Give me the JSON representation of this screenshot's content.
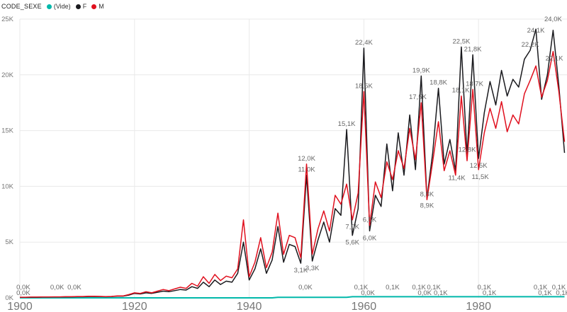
{
  "legend": {
    "title": "CODE_SEXE",
    "items": [
      {
        "label": "(Vide)"
      },
      {
        "label": "F"
      },
      {
        "label": "M"
      }
    ]
  },
  "chart_data": {
    "type": "line",
    "title": "",
    "xlabel": "",
    "ylabel": "",
    "legend_position": "top-left",
    "grid": true,
    "grid_color": "#e9e9e9",
    "axis_text_color": "#777777",
    "data_label_color": "#666666",
    "xlim": [
      1900,
      1995
    ],
    "ylim": [
      0,
      25000
    ],
    "x_ticks": [
      {
        "v": 1900,
        "label": "1900"
      },
      {
        "v": 1920,
        "label": "1920"
      },
      {
        "v": 1940,
        "label": "1940"
      },
      {
        "v": 1960,
        "label": "1960"
      },
      {
        "v": 1980,
        "label": "1980"
      }
    ],
    "y_ticks": [
      {
        "v": 0,
        "label": "0K"
      },
      {
        "v": 5,
        "label": "5K"
      },
      {
        "v": 10,
        "label": "10K"
      },
      {
        "v": 15,
        "label": "15K"
      },
      {
        "v": 20,
        "label": "20K"
      },
      {
        "v": 25,
        "label": "25K"
      }
    ],
    "years": [
      1900,
      1901,
      1902,
      1903,
      1904,
      1905,
      1906,
      1907,
      1908,
      1909,
      1910,
      1911,
      1912,
      1913,
      1914,
      1915,
      1916,
      1917,
      1918,
      1919,
      1920,
      1921,
      1922,
      1923,
      1924,
      1925,
      1926,
      1927,
      1928,
      1929,
      1930,
      1931,
      1932,
      1933,
      1934,
      1935,
      1936,
      1937,
      1938,
      1939,
      1940,
      1941,
      1942,
      1943,
      1944,
      1945,
      1946,
      1947,
      1948,
      1949,
      1950,
      1951,
      1952,
      1953,
      1954,
      1955,
      1956,
      1957,
      1958,
      1959,
      1960,
      1961,
      1962,
      1963,
      1964,
      1965,
      1966,
      1967,
      1968,
      1969,
      1970,
      1971,
      1972,
      1973,
      1974,
      1975,
      1976,
      1977,
      1978,
      1979,
      1980,
      1981,
      1982,
      1983,
      1984,
      1985,
      1986,
      1987,
      1988,
      1989,
      1990,
      1991,
      1992,
      1993,
      1994,
      1995
    ],
    "series": [
      {
        "key": "vide",
        "name": "(Vide)",
        "color": "#01b8aa",
        "width": 2,
        "values": [
          0,
          0,
          0,
          0,
          0,
          0,
          0,
          0,
          0,
          0,
          0,
          0,
          0,
          0,
          0,
          0,
          0,
          0,
          0,
          0,
          0,
          0,
          0,
          0,
          0,
          0,
          0,
          0,
          0,
          0,
          0,
          0,
          0,
          0,
          0,
          0,
          0,
          0,
          0,
          0,
          0,
          0,
          0,
          0,
          0,
          0.05,
          0.05,
          0.05,
          0.05,
          0.05,
          0.05,
          0.05,
          0.05,
          0.05,
          0.05,
          0.05,
          0.05,
          0.05,
          0.1,
          0.1,
          0.1,
          0.1,
          0.1,
          0.1,
          0.1,
          0.1,
          0.1,
          0.1,
          0.1,
          0.1,
          0.1,
          0.1,
          0.1,
          0.1,
          0.1,
          0.1,
          0.1,
          0.1,
          0.1,
          0.1,
          0.1,
          0.1,
          0.1,
          0.1,
          0.1,
          0.1,
          0.1,
          0.1,
          0.1,
          0.1,
          0.1,
          0.1,
          0.1,
          0.1,
          0.1,
          0.1
        ]
      },
      {
        "key": "f",
        "name": "F",
        "color": "#1a1a1e",
        "width": 1.5,
        "values": [
          0.05,
          0.05,
          0.06,
          0.06,
          0.07,
          0.07,
          0.08,
          0.08,
          0.09,
          0.09,
          0.1,
          0.1,
          0.12,
          0.12,
          0.12,
          0.1,
          0.12,
          0.15,
          0.15,
          0.25,
          0.4,
          0.35,
          0.45,
          0.4,
          0.5,
          0.6,
          0.55,
          0.65,
          0.75,
          0.7,
          1.0,
          0.85,
          1.4,
          1.0,
          1.6,
          1.2,
          1.5,
          1.4,
          2.2,
          5.0,
          1.6,
          2.6,
          4.4,
          2.2,
          3.4,
          6.4,
          3.2,
          4.8,
          4.6,
          3.1,
          11.0,
          3.3,
          5.2,
          6.8,
          5.0,
          8.0,
          7.4,
          15.1,
          5.6,
          8.0,
          22.4,
          6.0,
          9.2,
          8.2,
          13.8,
          9.6,
          14.8,
          11.0,
          16.4,
          11.5,
          19.9,
          8.9,
          13.0,
          18.8,
          12.0,
          14.2,
          11.4,
          22.5,
          12.8,
          21.8,
          12.5,
          16.6,
          19.4,
          17.3,
          20.4,
          18.1,
          19.6,
          18.9,
          21.4,
          22.2,
          24.1,
          17.8,
          20.0,
          24.0,
          19.0,
          13.0
        ]
      },
      {
        "key": "m",
        "name": "M",
        "color": "#e0101e",
        "width": 1.5,
        "values": [
          0.06,
          0.06,
          0.07,
          0.07,
          0.08,
          0.08,
          0.09,
          0.09,
          0.1,
          0.1,
          0.12,
          0.12,
          0.14,
          0.14,
          0.13,
          0.11,
          0.13,
          0.17,
          0.17,
          0.3,
          0.45,
          0.4,
          0.55,
          0.45,
          0.6,
          0.75,
          0.65,
          0.8,
          0.95,
          0.85,
          1.3,
          1.05,
          1.9,
          1.3,
          2.1,
          1.55,
          1.95,
          1.8,
          2.6,
          7.0,
          1.9,
          3.2,
          5.4,
          2.7,
          4.1,
          7.6,
          3.9,
          5.6,
          5.4,
          3.6,
          12.0,
          3.9,
          6.2,
          7.8,
          6.0,
          9.2,
          8.4,
          10.2,
          7.0,
          9.4,
          18.5,
          6.5,
          10.4,
          9.0,
          12.2,
          10.6,
          13.2,
          11.6,
          15.2,
          12.4,
          17.5,
          8.8,
          12.2,
          15.8,
          11.4,
          13.2,
          11.0,
          18.1,
          12.3,
          18.7,
          11.5,
          14.8,
          17.0,
          15.2,
          17.6,
          14.9,
          16.4,
          15.6,
          18.3,
          19.5,
          20.8,
          18.0,
          19.5,
          22.1,
          18.5,
          14.0
        ]
      }
    ],
    "point_labels": [
      {
        "t": "0,0K",
        "yr": 1900.6,
        "k": 0.45,
        "pos": "above"
      },
      {
        "t": "0,0K",
        "yr": 1900.6,
        "k": 0.08,
        "pos": "under"
      },
      {
        "t": "0,0K",
        "yr": 1906.5,
        "k": 0.45,
        "pos": "above"
      },
      {
        "t": "0,0K",
        "yr": 1909.5,
        "k": 0.45,
        "pos": "above"
      },
      {
        "t": "3,1K",
        "yr": 1949,
        "k": 3.1,
        "pos": "below"
      },
      {
        "t": "12,0K",
        "yr": 1950,
        "k": 12.0,
        "pos": "above"
      },
      {
        "t": "11,0K",
        "yr": 1950,
        "k": 11.0,
        "pos": "above"
      },
      {
        "t": "3,3K",
        "yr": 1951,
        "k": 3.3,
        "pos": "below"
      },
      {
        "t": "0,0K",
        "yr": 1949.8,
        "k": 0.45,
        "pos": "above"
      },
      {
        "t": "15,1K",
        "yr": 1957,
        "k": 15.1,
        "pos": "above"
      },
      {
        "t": "7,0K",
        "yr": 1958,
        "k": 7.0,
        "pos": "below"
      },
      {
        "t": "5,6K",
        "yr": 1958,
        "k": 5.6,
        "pos": "below"
      },
      {
        "t": "22,4K",
        "yr": 1960,
        "k": 22.4,
        "pos": "above"
      },
      {
        "t": "18,5K",
        "yr": 1960,
        "k": 18.5,
        "pos": "above"
      },
      {
        "t": "0,1K",
        "yr": 1959.5,
        "k": 0.45,
        "pos": "above"
      },
      {
        "t": "0,0K",
        "yr": 1960.7,
        "k": 0.08,
        "pos": "under"
      },
      {
        "t": "6,5K",
        "yr": 1961,
        "k": 6.5,
        "pos": "above"
      },
      {
        "t": "6,0K",
        "yr": 1961,
        "k": 6.0,
        "pos": "below"
      },
      {
        "t": "0,1K",
        "yr": 1965,
        "k": 0.45,
        "pos": "above"
      },
      {
        "t": "19,9K",
        "yr": 1970,
        "k": 19.9,
        "pos": "above"
      },
      {
        "t": "17,5K",
        "yr": 1969.4,
        "k": 17.5,
        "pos": "above"
      },
      {
        "t": "8,8K",
        "yr": 1971,
        "k": 8.8,
        "pos": "above"
      },
      {
        "t": "8,9K",
        "yr": 1971,
        "k": 8.9,
        "pos": "below"
      },
      {
        "t": "0,1K",
        "yr": 1969.6,
        "k": 0.45,
        "pos": "above"
      },
      {
        "t": "0,0K",
        "yr": 1970.6,
        "k": 0.08,
        "pos": "under"
      },
      {
        "t": "0,1K",
        "yr": 1972.2,
        "k": 0.45,
        "pos": "above"
      },
      {
        "t": "0,1K",
        "yr": 1973.4,
        "k": 0.08,
        "pos": "under"
      },
      {
        "t": "18,8K",
        "yr": 1973,
        "k": 18.8,
        "pos": "above"
      },
      {
        "t": "11,4K",
        "yr": 1976.2,
        "k": 11.4,
        "pos": "below"
      },
      {
        "t": "22,5K",
        "yr": 1977,
        "k": 22.5,
        "pos": "above"
      },
      {
        "t": "18,1K",
        "yr": 1976.9,
        "k": 18.1,
        "pos": "above"
      },
      {
        "t": "12,8K",
        "yr": 1978,
        "k": 12.8,
        "pos": "above"
      },
      {
        "t": "21,8K",
        "yr": 1979,
        "k": 21.8,
        "pos": "above"
      },
      {
        "t": "18,7K",
        "yr": 1979.3,
        "k": 18.7,
        "pos": "above"
      },
      {
        "t": "12,5K",
        "yr": 1980,
        "k": 12.5,
        "pos": "below"
      },
      {
        "t": "11,5K",
        "yr": 1980.3,
        "k": 11.5,
        "pos": "below"
      },
      {
        "t": "0,1K",
        "yr": 1981,
        "k": 0.45,
        "pos": "above"
      },
      {
        "t": "0,1K",
        "yr": 1981.9,
        "k": 0.08,
        "pos": "under"
      },
      {
        "t": "22,2K",
        "yr": 1989,
        "k": 22.2,
        "pos": "above"
      },
      {
        "t": "24,1K",
        "yr": 1990,
        "k": 24.1,
        "pos": "above",
        "dy": 10
      },
      {
        "t": "24,0K",
        "yr": 1993,
        "k": 24.0,
        "pos": "above",
        "dy": -8
      },
      {
        "t": "22,1K",
        "yr": 1993.2,
        "k": 22.1,
        "pos": "below"
      },
      {
        "t": "0,1K",
        "yr": 1990.8,
        "k": 0.45,
        "pos": "above"
      },
      {
        "t": "0,1K",
        "yr": 1991.6,
        "k": 0.08,
        "pos": "under"
      },
      {
        "t": "0,1K",
        "yr": 1994,
        "k": 0.45,
        "pos": "above"
      },
      {
        "t": "0,1K",
        "yr": 1994.7,
        "k": 0.08,
        "pos": "under"
      }
    ]
  }
}
